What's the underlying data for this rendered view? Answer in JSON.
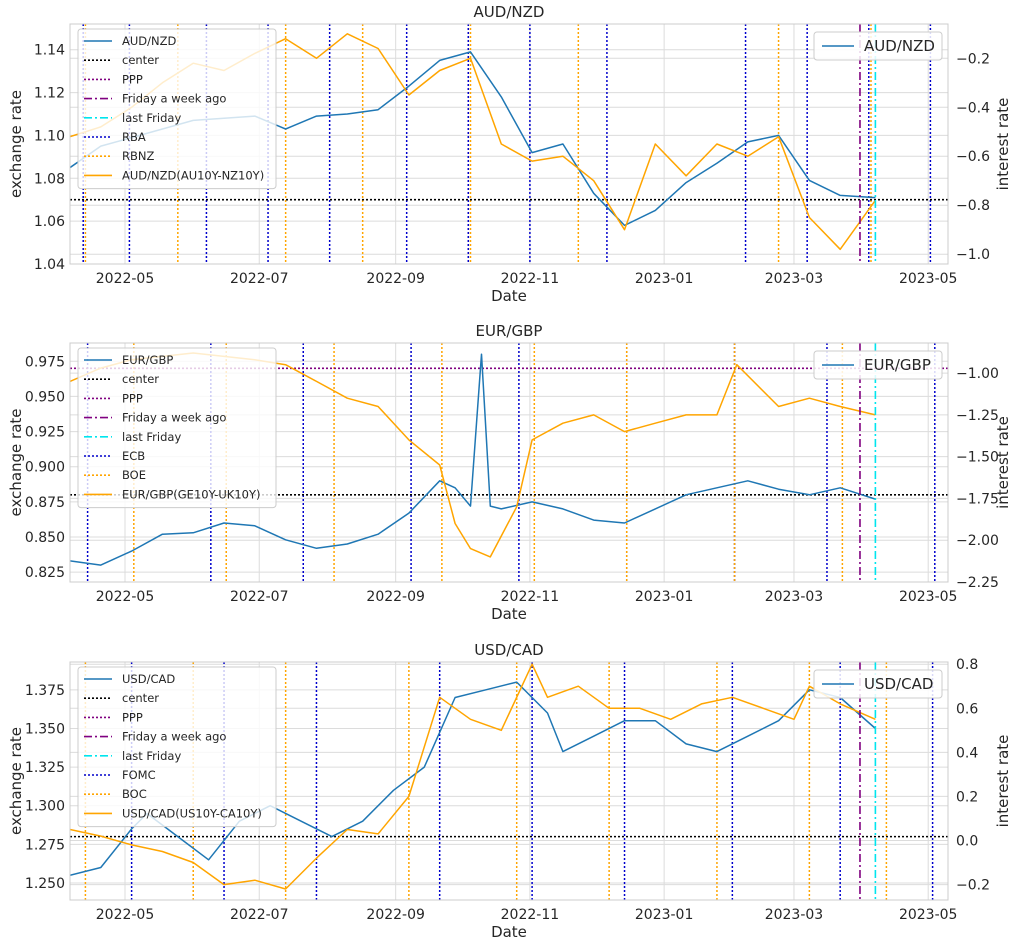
{
  "chart_data": [
    {
      "type": "line",
      "title": "AUD/NZD",
      "xlabel": "Date",
      "ylabel": "exchange rate",
      "y2label": "interest rate",
      "xlim": [
        "2022-04-06",
        "2023-05-10"
      ],
      "xticks": [
        "2022-05",
        "2022-07",
        "2022-09",
        "2022-11",
        "2023-01",
        "2023-03",
        "2023-05"
      ],
      "ylim": [
        1.04,
        1.152
      ],
      "yticks": [
        "1.04",
        "1.06",
        "1.08",
        "1.10",
        "1.12",
        "1.14"
      ],
      "y2lim": [
        -1.04,
        -0.06
      ],
      "y2ticks": [
        "−1.0",
        "−0.8",
        "−0.6",
        "−0.4",
        "−0.2"
      ],
      "grid": true,
      "legend_left": [
        "AUD/NZD",
        "center",
        "PPP",
        "Friday a week ago",
        "last Friday",
        "RBA",
        "RBNZ",
        "AUD/NZD(AU10Y-NZ10Y)"
      ],
      "legend_right": [
        "AUD/NZD"
      ],
      "center": 1.07,
      "ppp": null,
      "friday_week_ago": "2023-03-31",
      "last_friday": "2023-04-07",
      "events_blue": [
        "2022-04-12",
        "2022-05-03",
        "2022-06-07",
        "2022-07-05",
        "2022-08-02",
        "2022-09-06",
        "2022-10-04",
        "2022-11-01",
        "2022-12-06",
        "2023-02-07",
        "2023-03-07",
        "2023-04-04",
        "2023-05-02"
      ],
      "events_orange": [
        "2022-04-13",
        "2022-05-25",
        "2022-07-13",
        "2022-08-17",
        "2022-10-05",
        "2022-11-23",
        "2023-02-22",
        "2023-04-05"
      ],
      "series": [
        {
          "name": "AUD/NZD",
          "color": "#1f77b4",
          "axis": "left",
          "dates": [
            "2022-04-06",
            "2022-04-20",
            "2022-05-04",
            "2022-05-18",
            "2022-06-01",
            "2022-06-15",
            "2022-06-29",
            "2022-07-13",
            "2022-07-27",
            "2022-08-10",
            "2022-08-24",
            "2022-09-07",
            "2022-09-21",
            "2022-10-05",
            "2022-10-19",
            "2022-11-02",
            "2022-11-16",
            "2022-11-30",
            "2022-12-14",
            "2022-12-28",
            "2023-01-11",
            "2023-01-25",
            "2023-02-08",
            "2023-02-22",
            "2023-03-08",
            "2023-03-22",
            "2023-04-07"
          ],
          "values": [
            1.085,
            1.095,
            1.099,
            1.103,
            1.107,
            1.108,
            1.109,
            1.103,
            1.109,
            1.11,
            1.112,
            1.123,
            1.135,
            1.139,
            1.118,
            1.092,
            1.096,
            1.073,
            1.058,
            1.065,
            1.078,
            1.087,
            1.097,
            1.1,
            1.079,
            1.072,
            1.071
          ]
        },
        {
          "name": "AUD/NZD(AU10Y-NZ10Y)",
          "color": "#ffa500",
          "axis": "right",
          "dates": [
            "2022-04-06",
            "2022-04-20",
            "2022-05-04",
            "2022-05-18",
            "2022-06-01",
            "2022-06-15",
            "2022-06-29",
            "2022-07-13",
            "2022-07-27",
            "2022-08-10",
            "2022-08-24",
            "2022-09-07",
            "2022-09-21",
            "2022-10-05",
            "2022-10-19",
            "2022-11-02",
            "2022-11-16",
            "2022-11-30",
            "2022-12-14",
            "2022-12-28",
            "2023-01-11",
            "2023-01-25",
            "2023-02-08",
            "2023-02-22",
            "2023-03-08",
            "2023-03-22",
            "2023-04-07"
          ],
          "values": [
            -0.52,
            -0.48,
            -0.4,
            -0.3,
            -0.22,
            -0.25,
            -0.18,
            -0.12,
            -0.2,
            -0.1,
            -0.16,
            -0.35,
            -0.25,
            -0.2,
            -0.55,
            -0.62,
            -0.6,
            -0.7,
            -0.9,
            -0.55,
            -0.68,
            -0.55,
            -0.6,
            -0.52,
            -0.85,
            -0.98,
            -0.78
          ]
        }
      ]
    },
    {
      "type": "line",
      "title": "EUR/GBP",
      "xlabel": "Date",
      "ylabel": "exchange rate",
      "y2label": "interest rate",
      "xlim": [
        "2022-04-06",
        "2023-05-10"
      ],
      "xticks": [
        "2022-05",
        "2022-07",
        "2022-09",
        "2022-11",
        "2023-01",
        "2023-03",
        "2023-05"
      ],
      "ylim": [
        0.818,
        0.988
      ],
      "yticks": [
        "0.825",
        "0.850",
        "0.875",
        "0.900",
        "0.925",
        "0.950",
        "0.975"
      ],
      "y2lim": [
        -2.25,
        -0.82
      ],
      "y2ticks": [
        "−2.25",
        "−2.00",
        "−1.75",
        "−1.50",
        "−1.25",
        "−1.00"
      ],
      "grid": true,
      "legend_left": [
        "EUR/GBP",
        "center",
        "PPP",
        "Friday a week ago",
        "last Friday",
        "ECB",
        "BOE",
        "EUR/GBP(GE10Y-UK10Y)"
      ],
      "legend_right": [
        "EUR/GBP"
      ],
      "center": 0.88,
      "ppp": 0.97,
      "friday_week_ago": "2023-03-31",
      "last_friday": "2023-04-07",
      "events_blue": [
        "2022-04-14",
        "2022-06-09",
        "2022-07-21",
        "2022-09-08",
        "2022-10-27",
        "2022-12-15",
        "2023-02-02",
        "2023-03-16",
        "2023-05-04"
      ],
      "events_orange": [
        "2022-05-05",
        "2022-06-16",
        "2022-08-04",
        "2022-09-22",
        "2022-11-03",
        "2022-12-15",
        "2023-02-02",
        "2023-03-23"
      ],
      "series": [
        {
          "name": "EUR/GBP",
          "color": "#1f77b4",
          "axis": "left",
          "dates": [
            "2022-04-06",
            "2022-04-20",
            "2022-05-04",
            "2022-05-18",
            "2022-06-01",
            "2022-06-15",
            "2022-06-29",
            "2022-07-13",
            "2022-07-27",
            "2022-08-10",
            "2022-08-24",
            "2022-09-07",
            "2022-09-21",
            "2022-09-28",
            "2022-10-05",
            "2022-10-10",
            "2022-10-14",
            "2022-10-19",
            "2022-11-02",
            "2022-11-16",
            "2022-11-30",
            "2022-12-14",
            "2022-12-28",
            "2023-01-11",
            "2023-01-25",
            "2023-02-08",
            "2023-02-22",
            "2023-03-08",
            "2023-03-22",
            "2023-04-07"
          ],
          "values": [
            0.833,
            0.83,
            0.84,
            0.852,
            0.853,
            0.86,
            0.858,
            0.848,
            0.842,
            0.845,
            0.852,
            0.867,
            0.89,
            0.885,
            0.872,
            0.98,
            0.872,
            0.87,
            0.875,
            0.87,
            0.862,
            0.86,
            0.87,
            0.88,
            0.885,
            0.89,
            0.884,
            0.88,
            0.885,
            0.877
          ]
        },
        {
          "name": "EUR/GBP(GE10Y-UK10Y)",
          "color": "#ffa500",
          "axis": "right",
          "dates": [
            "2022-04-06",
            "2022-04-20",
            "2022-05-04",
            "2022-05-18",
            "2022-06-01",
            "2022-06-15",
            "2022-06-29",
            "2022-07-13",
            "2022-07-27",
            "2022-08-10",
            "2022-08-24",
            "2022-09-07",
            "2022-09-21",
            "2022-09-28",
            "2022-10-05",
            "2022-10-14",
            "2022-10-26",
            "2022-11-02",
            "2022-11-16",
            "2022-11-30",
            "2022-12-14",
            "2022-12-28",
            "2023-01-11",
            "2023-01-25",
            "2023-02-03",
            "2023-02-22",
            "2023-03-08",
            "2023-03-22",
            "2023-04-07"
          ],
          "values": [
            -1.05,
            -0.97,
            -0.92,
            -0.9,
            -0.88,
            -0.9,
            -0.92,
            -0.95,
            -1.05,
            -1.15,
            -1.2,
            -1.4,
            -1.55,
            -1.9,
            -2.05,
            -2.1,
            -1.8,
            -1.4,
            -1.3,
            -1.25,
            -1.35,
            -1.3,
            -1.25,
            -1.25,
            -0.95,
            -1.2,
            -1.15,
            -1.2,
            -1.25
          ]
        }
      ]
    },
    {
      "type": "line",
      "title": "USD/CAD",
      "xlabel": "Date",
      "ylabel": "exchange rate",
      "y2label": "interest rate",
      "xlim": [
        "2022-04-06",
        "2023-05-10"
      ],
      "xticks": [
        "2022-05",
        "2022-07",
        "2022-09",
        "2022-11",
        "2023-01",
        "2023-03",
        "2023-05"
      ],
      "ylim": [
        1.239,
        1.393
      ],
      "yticks": [
        "1.250",
        "1.275",
        "1.300",
        "1.325",
        "1.350",
        "1.375"
      ],
      "y2lim": [
        -0.27,
        0.81
      ],
      "y2ticks": [
        "−0.2",
        "0.0",
        "0.2",
        "0.4",
        "0.6",
        "0.8"
      ],
      "grid": true,
      "legend_left": [
        "USD/CAD",
        "center",
        "PPP",
        "Friday a week ago",
        "last Friday",
        "FOMC",
        "BOC",
        "USD/CAD(US10Y-CA10Y)"
      ],
      "legend_right": [
        "USD/CAD"
      ],
      "center": 1.28,
      "ppp": null,
      "friday_week_ago": "2023-03-31",
      "last_friday": "2023-04-07",
      "events_blue": [
        "2022-05-04",
        "2022-06-15",
        "2022-07-27",
        "2022-09-21",
        "2022-11-02",
        "2022-12-14",
        "2023-02-01",
        "2023-03-22",
        "2023-05-03"
      ],
      "events_orange": [
        "2022-04-13",
        "2022-06-01",
        "2022-07-13",
        "2022-09-07",
        "2022-10-26",
        "2022-12-07",
        "2023-01-25",
        "2023-03-08",
        "2023-04-12"
      ],
      "series": [
        {
          "name": "USD/CAD",
          "color": "#1f77b4",
          "axis": "left",
          "dates": [
            "2022-04-06",
            "2022-04-20",
            "2022-05-04",
            "2022-05-11",
            "2022-05-25",
            "2022-06-08",
            "2022-06-22",
            "2022-07-06",
            "2022-07-20",
            "2022-08-03",
            "2022-08-17",
            "2022-08-31",
            "2022-09-14",
            "2022-09-28",
            "2022-10-12",
            "2022-10-26",
            "2022-11-09",
            "2022-11-16",
            "2022-11-30",
            "2022-12-14",
            "2022-12-28",
            "2023-01-11",
            "2023-01-25",
            "2023-02-08",
            "2023-02-22",
            "2023-03-08",
            "2023-03-22",
            "2023-04-07"
          ],
          "values": [
            1.255,
            1.26,
            1.285,
            1.295,
            1.28,
            1.265,
            1.29,
            1.3,
            1.29,
            1.28,
            1.29,
            1.31,
            1.325,
            1.37,
            1.375,
            1.38,
            1.36,
            1.335,
            1.345,
            1.355,
            1.355,
            1.34,
            1.335,
            1.345,
            1.355,
            1.375,
            1.37,
            1.35
          ]
        },
        {
          "name": "USD/CAD(US10Y-CA10Y)",
          "color": "#ffa500",
          "axis": "right",
          "dates": [
            "2022-04-06",
            "2022-04-20",
            "2022-05-04",
            "2022-05-18",
            "2022-06-01",
            "2022-06-15",
            "2022-06-29",
            "2022-07-13",
            "2022-07-27",
            "2022-08-10",
            "2022-08-24",
            "2022-09-07",
            "2022-09-21",
            "2022-10-05",
            "2022-10-19",
            "2022-11-02",
            "2022-11-09",
            "2022-11-23",
            "2022-12-07",
            "2022-12-21",
            "2023-01-04",
            "2023-01-18",
            "2023-02-01",
            "2023-02-15",
            "2023-03-01",
            "2023-03-08",
            "2023-03-22",
            "2023-04-07"
          ],
          "values": [
            0.05,
            0.02,
            -0.02,
            -0.05,
            -0.1,
            -0.2,
            -0.18,
            -0.22,
            -0.08,
            0.05,
            0.03,
            0.2,
            0.65,
            0.55,
            0.5,
            0.8,
            0.65,
            0.7,
            0.6,
            0.6,
            0.55,
            0.62,
            0.65,
            0.6,
            0.55,
            0.7,
            0.62,
            0.55
          ]
        }
      ]
    }
  ]
}
